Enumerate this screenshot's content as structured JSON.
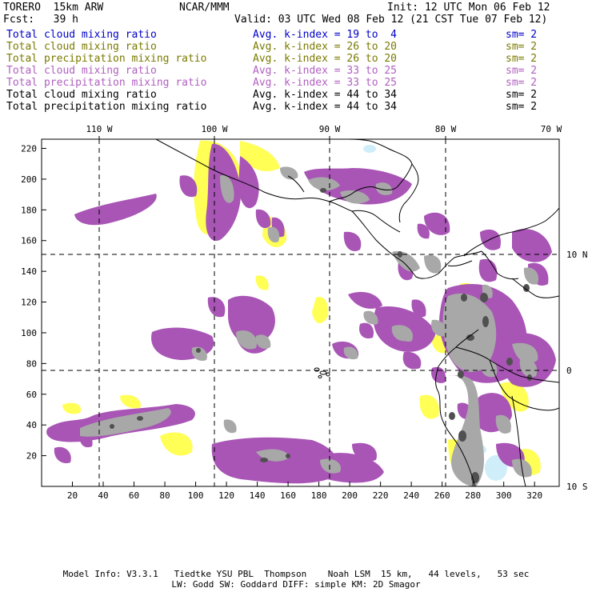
{
  "header": {
    "model": "TORERO  15km ARW",
    "org": "NCAR/MMM",
    "init": "Init: 12 UTC Mon 06 Feb 12",
    "fcst": "Fcst:   39 h",
    "valid": "Valid: 03 UTC Wed 08 Feb 12 (21 CST Tue 07 Feb 12)"
  },
  "legend": [
    {
      "field": "Total cloud mixing ratio",
      "kindex": "Avg. k-index = 19 to  4",
      "sm": "sm= 2",
      "color": "#0000c8"
    },
    {
      "field": "Total cloud mixing ratio",
      "kindex": "Avg. k-index = 26 to 20",
      "sm": "sm= 2",
      "color": "#7a7a00"
    },
    {
      "field": "Total precipitation mixing ratio",
      "kindex": "Avg. k-index = 26 to 20",
      "sm": "sm= 2",
      "color": "#7a7a00"
    },
    {
      "field": "Total cloud mixing ratio",
      "kindex": "Avg. k-index = 33 to 25",
      "sm": "sm= 2",
      "color": "#b060c0"
    },
    {
      "field": "Total precipitation mixing ratio",
      "kindex": "Avg. k-index = 33 to 25",
      "sm": "sm= 2",
      "color": "#b060c0"
    },
    {
      "field": "Total cloud mixing ratio",
      "kindex": "Avg. k-index = 44 to 34",
      "sm": "sm= 2",
      "color": "#000000"
    },
    {
      "field": "Total precipitation mixing ratio",
      "kindex": "Avg. k-index = 44 to 34",
      "sm": "sm= 2",
      "color": "#000000"
    }
  ],
  "map": {
    "lon_labels": [
      "110 W",
      "100 W",
      "90 W",
      "80 W",
      "70 W"
    ],
    "lat_labels": [
      "10 N",
      "0",
      "10 S"
    ],
    "x_ticks": [
      "20",
      "40",
      "60",
      "80",
      "100",
      "120",
      "140",
      "160",
      "180",
      "200",
      "220",
      "240",
      "260",
      "280",
      "300",
      "320"
    ],
    "y_ticks": [
      "20",
      "40",
      "60",
      "80",
      "100",
      "120",
      "140",
      "160",
      "180",
      "200",
      "220"
    ],
    "colors": {
      "cloud_yellow": "#ffff55",
      "precip_purple": "#a855b5",
      "light_gray": "#a8a8a8",
      "dark_gray": "#505050",
      "light_blue": "#cfeefa"
    }
  },
  "footer": {
    "line1": "Model Info: V3.3.1   Tiedtke YSU PBL  Thompson    Noah LSM  15 km,   44 levels,   53 sec",
    "line2": "LW: Godd SW: Goddard DIFF: simple KM: 2D Smagor"
  }
}
